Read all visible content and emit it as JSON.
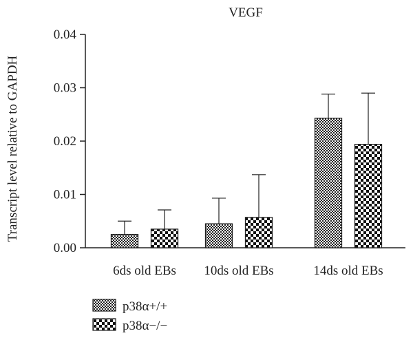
{
  "chart_data": {
    "type": "bar",
    "title": "VEGF",
    "xlabel": "",
    "ylabel": "Transcript level relative to GAPDH",
    "ylim": [
      0,
      0.04
    ],
    "yticks": [
      "0.00",
      "0.01",
      "0.02",
      "0.03",
      "0.04"
    ],
    "ytick_values": [
      0,
      0.01,
      0.02,
      0.03,
      0.04
    ],
    "categories": [
      "6ds old EBs",
      "10ds old EBs",
      "14ds old EBs"
    ],
    "series": [
      {
        "name": "p38α+/+",
        "pattern": "fine-checker",
        "values": [
          0.0025,
          0.0045,
          0.0243
        ],
        "error_upper": [
          0.0025,
          0.0048,
          0.0045
        ]
      },
      {
        "name": "p38α−/−",
        "pattern": "coarse-checker",
        "values": [
          0.0035,
          0.0057,
          0.0194
        ],
        "error_upper": [
          0.0036,
          0.008,
          0.0096
        ]
      }
    ],
    "legend_position": "bottom-left",
    "grid": false
  }
}
